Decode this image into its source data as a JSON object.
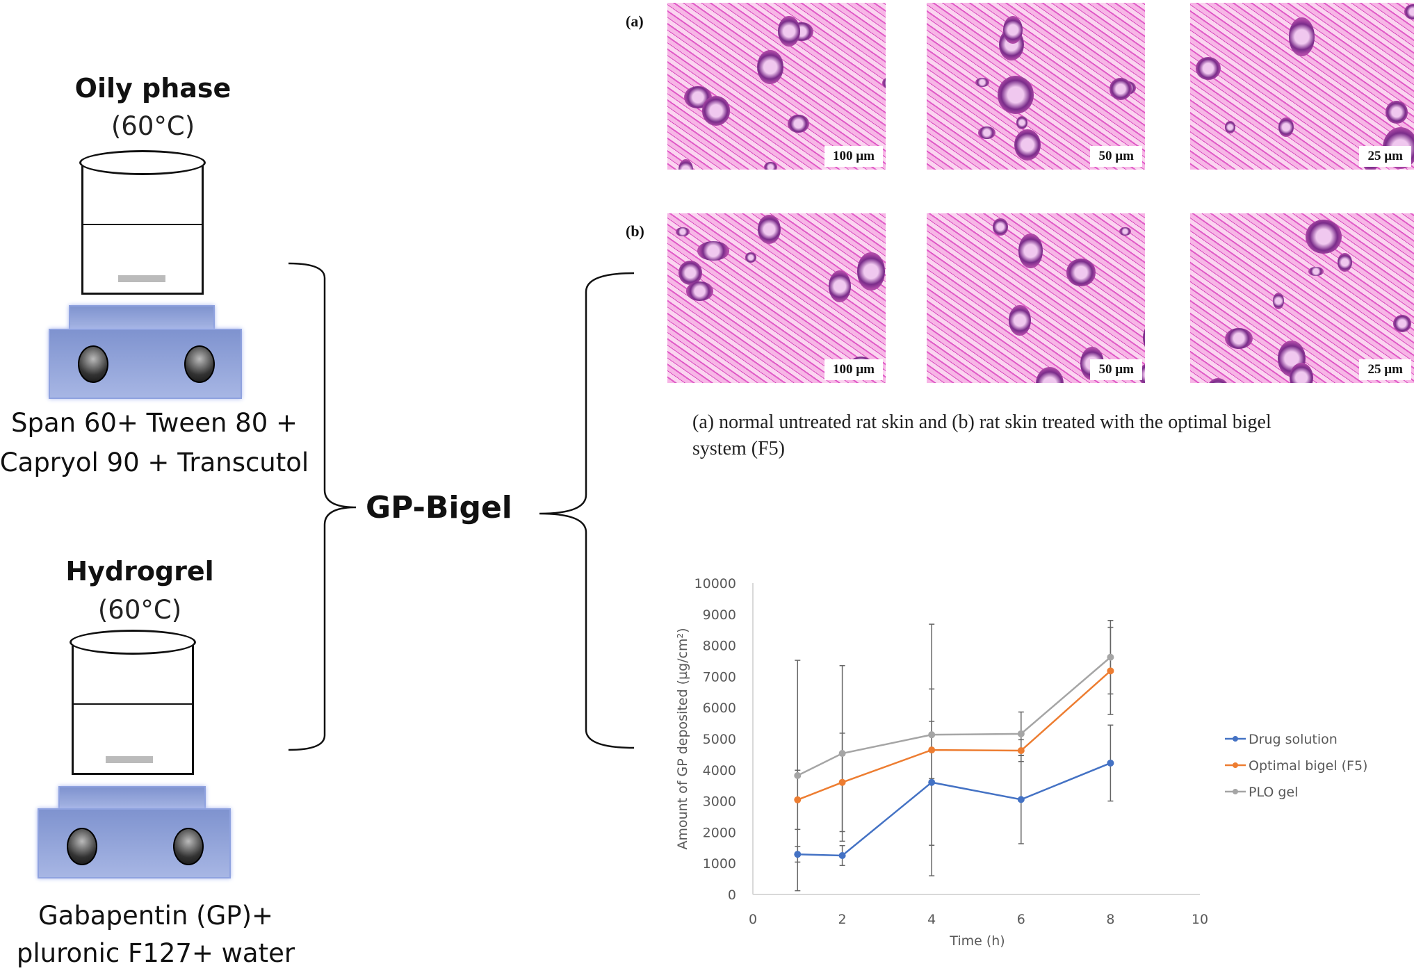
{
  "oily": {
    "title": "Oily phase",
    "temp": "(60°C)",
    "ingredients": [
      "Span 60+ Tween 80 +",
      "Capryol 90 + Transcutol"
    ]
  },
  "hydro": {
    "title": "Hydrogrel",
    "temp": "(60°C)",
    "ingredients": [
      "Gabapentin (GP)+",
      "pluronic F127+ water"
    ]
  },
  "product": "GP-Bigel",
  "histology": {
    "row_labels": [
      "(a)",
      "(b)"
    ],
    "scale_bars": [
      "100 µm",
      "50 µm",
      "25 µm"
    ],
    "caption": [
      "(a) normal untreated rat skin and (b) rat skin treated with the optimal bigel",
      "system (F5)"
    ]
  },
  "chart_data": {
    "type": "line",
    "xlabel": "Time (h)",
    "ylabel": "Amount of GP deposited (µg/cm²)",
    "xlim": [
      0,
      10
    ],
    "ylim": [
      0,
      10000
    ],
    "xticks": [
      0,
      2,
      4,
      6,
      8,
      10
    ],
    "yticks": [
      0,
      1000,
      2000,
      3000,
      4000,
      5000,
      6000,
      7000,
      8000,
      9000,
      10000
    ],
    "x": [
      1,
      2,
      4,
      6,
      8
    ],
    "grid": false,
    "legend": "right",
    "series": [
      {
        "name": "Drug solution",
        "color": "#4472c4",
        "values": [
          1290,
          1250,
          3600,
          3050,
          4220
        ],
        "errors": [
          250,
          320,
          3000,
          1420,
          1220
        ]
      },
      {
        "name": "Optimal bigel (F5)",
        "color": "#ed7d31",
        "values": [
          3040,
          3600,
          4640,
          4620,
          7180
        ],
        "errors": [
          950,
          1580,
          920,
          350,
          1400
        ]
      },
      {
        "name": "PLO gel",
        "color": "#a5a5a5",
        "values": [
          3820,
          4530,
          5130,
          5160,
          7620
        ],
        "errors": [
          3700,
          2820,
          3550,
          700,
          1180
        ]
      }
    ]
  }
}
